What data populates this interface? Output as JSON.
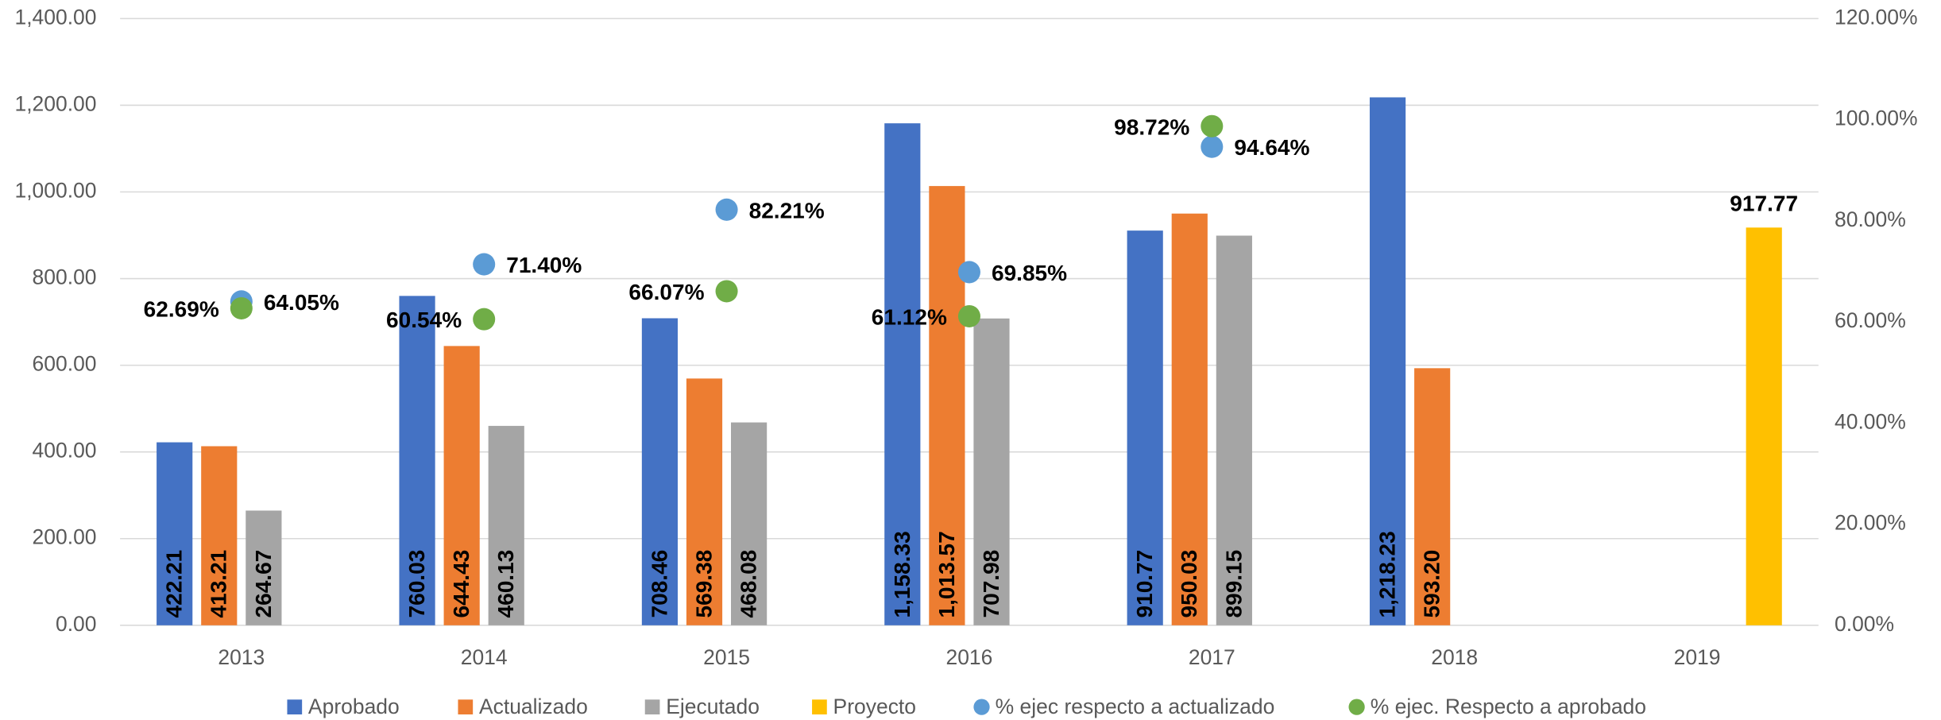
{
  "chart_data": {
    "type": "bar",
    "categories": [
      "2013",
      "2014",
      "2015",
      "2016",
      "2017",
      "2018",
      "2019"
    ],
    "series": [
      {
        "name": "Aprobado",
        "color": "#4472c4",
        "values": [
          422.21,
          760.03,
          708.46,
          1158.33,
          910.77,
          1218.23,
          null
        ],
        "value_labels": [
          "422.21",
          "760.03",
          "708.46",
          "1,158.33",
          "910.77",
          "1,218.23",
          null
        ]
      },
      {
        "name": "Actualizado",
        "color": "#ed7d31",
        "values": [
          413.21,
          644.43,
          569.38,
          1013.57,
          950.03,
          593.2,
          null
        ],
        "value_labels": [
          "413.21",
          "644.43",
          "569.38",
          "1,013.57",
          "950.03",
          "593.20",
          null
        ]
      },
      {
        "name": "Ejecutado",
        "color": "#a5a5a5",
        "values": [
          264.67,
          460.13,
          468.08,
          707.98,
          899.15,
          null,
          null
        ],
        "value_labels": [
          "264.67",
          "460.13",
          "468.08",
          "707.98",
          "899.15",
          null,
          null
        ]
      },
      {
        "name": "Proyecto",
        "color": "#ffc000",
        "values": [
          null,
          null,
          null,
          null,
          null,
          null,
          917.77
        ],
        "value_labels": [
          null,
          null,
          null,
          null,
          null,
          null,
          "917.77"
        ]
      },
      {
        "name": "% ejec respecto a actualizado",
        "type": "scatter",
        "axis": "y2",
        "color": "#5b9bd5",
        "values": [
          64.05,
          71.4,
          82.21,
          69.85,
          94.64,
          null,
          null
        ],
        "value_labels": [
          "64.05%",
          "71.40%",
          "82.21%",
          "69.85%",
          "94.64%",
          null,
          null
        ]
      },
      {
        "name": "% ejec. Respecto a aprobado",
        "type": "scatter",
        "axis": "y2",
        "color": "#70ad47",
        "values": [
          62.69,
          60.54,
          66.07,
          61.12,
          98.72,
          null,
          null
        ],
        "value_labels": [
          "62.69%",
          "60.54%",
          "66.07%",
          "61.12%",
          "98.72%",
          null,
          null
        ]
      }
    ],
    "ylim": [
      0,
      1400
    ],
    "yticks": [
      {
        "value": 0,
        "label": "0.00"
      },
      {
        "value": 200,
        "label": "200.00"
      },
      {
        "value": 400,
        "label": "400.00"
      },
      {
        "value": 600,
        "label": "600.00"
      },
      {
        "value": 800,
        "label": "800.00"
      },
      {
        "value": 1000,
        "label": "1,000.00"
      },
      {
        "value": 1200,
        "label": "1,200.00"
      },
      {
        "value": 1400,
        "label": "1,400.00"
      }
    ],
    "y2lim": [
      0,
      120
    ],
    "y2ticks": [
      {
        "value": 0,
        "label": "0.00%"
      },
      {
        "value": 20,
        "label": "20.00%"
      },
      {
        "value": 40,
        "label": "40.00%"
      },
      {
        "value": 60,
        "label": "60.00%"
      },
      {
        "value": 80,
        "label": "80.00%"
      },
      {
        "value": 100,
        "label": "100.00%"
      },
      {
        "value": 120,
        "label": "120.00%"
      }
    ],
    "grid": true,
    "legend": "bottom"
  }
}
